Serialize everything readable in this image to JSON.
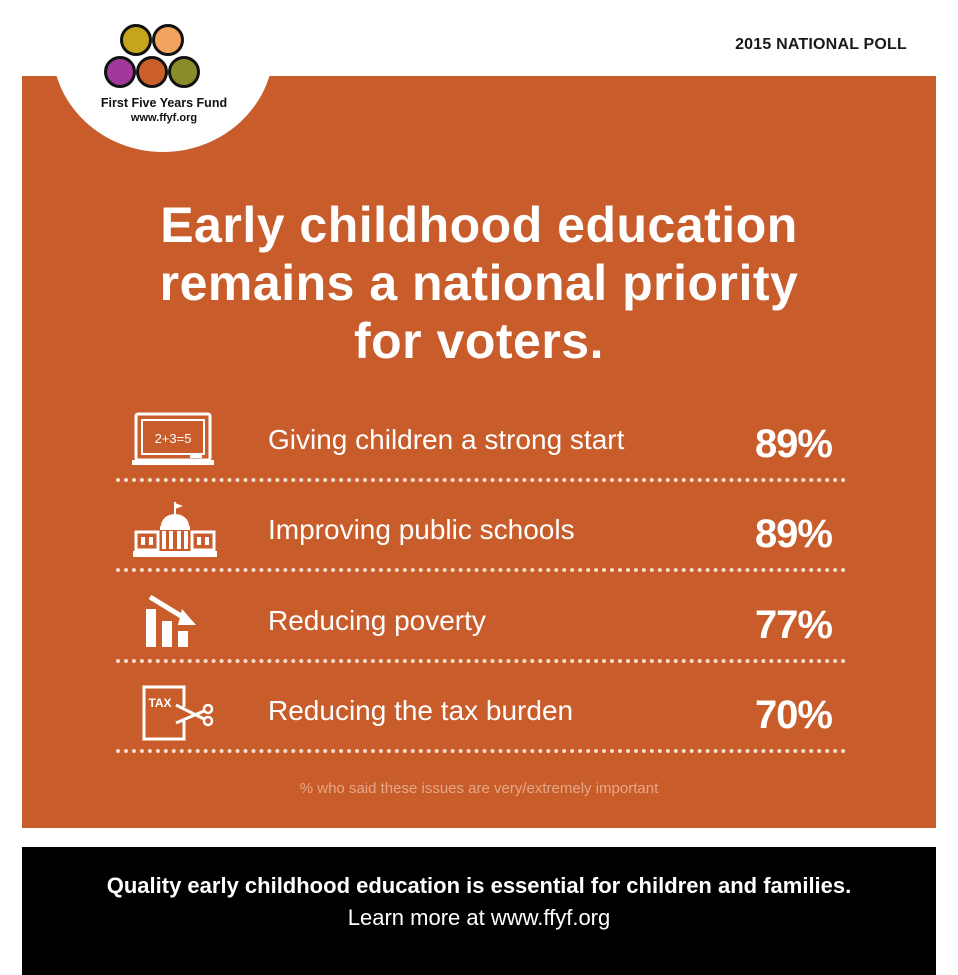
{
  "poll_label": "2015 NATIONAL POLL",
  "logo": {
    "name": "First Five Years Fund",
    "url": "www.ffyf.org",
    "dot_colors": [
      "#c4a51c",
      "#f0a45e",
      "#a2389a",
      "#cb5f2c",
      "#8a8c2a"
    ]
  },
  "headline": {
    "line1": "Early childhood education",
    "line2": "remains a national priority",
    "line3": "for voters."
  },
  "issues": [
    {
      "icon": "chalkboard-icon",
      "label": "Giving children a strong start",
      "percent": "89%"
    },
    {
      "icon": "capitol-building-icon",
      "label": "Improving public schools",
      "percent": "89%"
    },
    {
      "icon": "declining-bar-chart-icon",
      "label": "Reducing poverty",
      "percent": "77%"
    },
    {
      "icon": "tax-scissors-icon",
      "label": "Reducing the tax burden",
      "percent": "70%"
    }
  ],
  "chalkboard_text": "2+3=5",
  "tax_text": "TAX",
  "footnote": "% who said these issues are very/extremely important",
  "footer": {
    "tagline": "Quality early childhood education is essential for children and families.",
    "more": "Learn more at www.ffyf.org"
  },
  "colors": {
    "panel": "#c85c2a",
    "footer": "#000000",
    "text_light": "#ffffff",
    "dotted_rule": "#f6dccb"
  }
}
